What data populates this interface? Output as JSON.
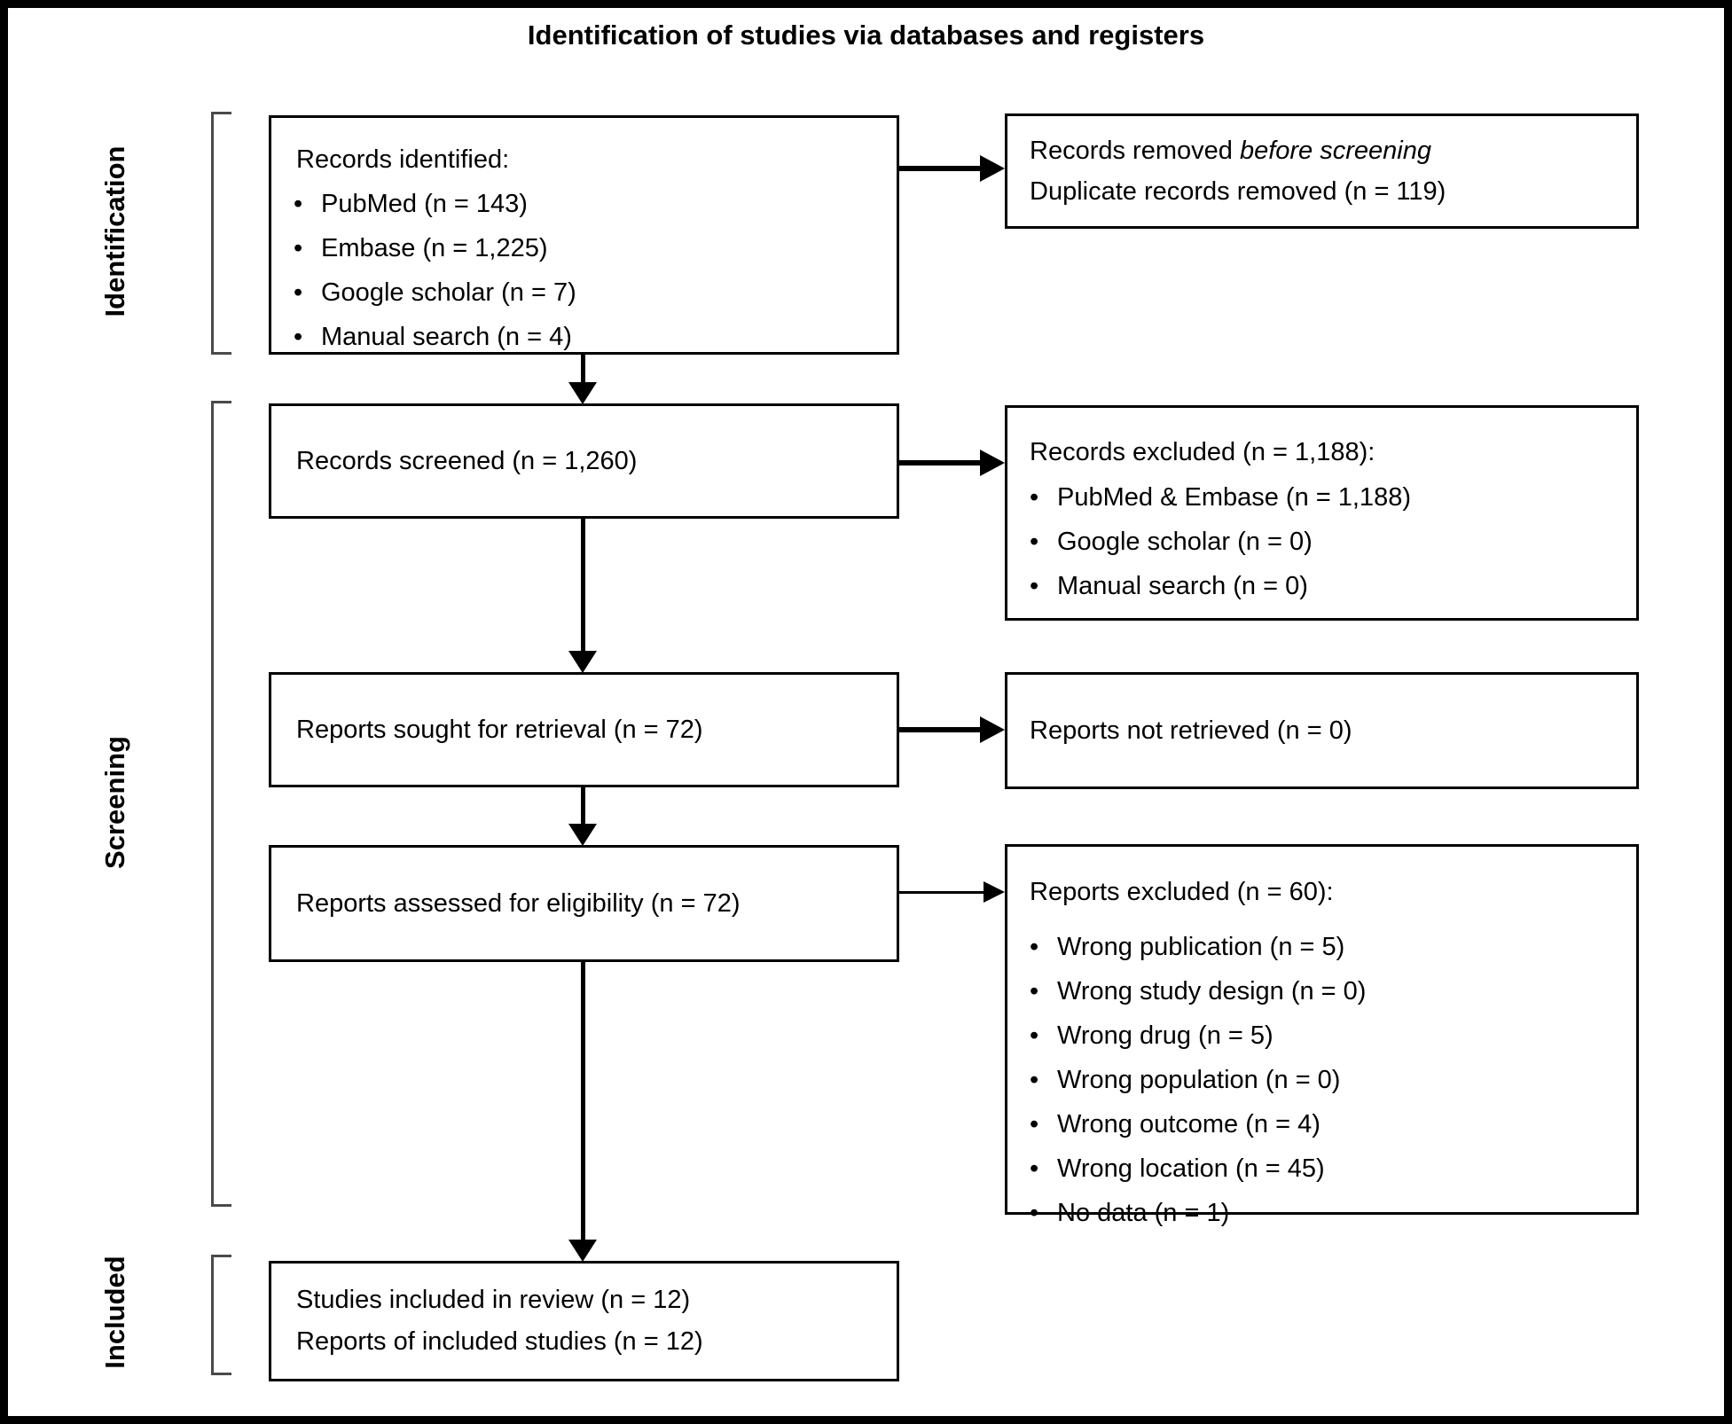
{
  "title": "Identification of studies via databases and registers",
  "stages": {
    "identification": "Identification",
    "screening": "Screening",
    "included": "Included"
  },
  "boxes": {
    "records_identified": {
      "header": "Records identified:",
      "items": [
        "PubMed (n = 143)",
        "Embase (n = 1,225)",
        "Google scholar (n = 7)",
        "Manual search (n = 4)"
      ]
    },
    "records_removed": {
      "line1_prefix": "Records removed ",
      "line1_italic": "before screening",
      "line2": "Duplicate records removed (n = 119)"
    },
    "records_screened": {
      "text": "Records screened (n = 1,260)"
    },
    "records_excluded": {
      "header": "Records excluded (n = 1,188):",
      "items": [
        "PubMed & Embase (n = 1,188)",
        "Google scholar (n = 0)",
        "Manual search (n = 0)"
      ]
    },
    "reports_sought": {
      "text": "Reports sought for retrieval (n = 72)"
    },
    "reports_not_retrieved": {
      "text": "Reports not retrieved (n = 0)"
    },
    "reports_assessed": {
      "text": "Reports assessed for eligibility (n = 72)"
    },
    "reports_excluded": {
      "header": "Reports excluded (n = 60):",
      "items": [
        "Wrong publication (n = 5)",
        "Wrong study design (n = 0)",
        "Wrong drug (n = 5)",
        "Wrong population (n = 0)",
        "Wrong outcome (n = 4)",
        "Wrong location (n = 45)",
        "No data (n = 1)"
      ]
    },
    "studies_included": {
      "line1": "Studies included in review (n = 12)",
      "line2": "Reports of included studies (n = 12)"
    }
  },
  "colors": {
    "line": "#000000",
    "bracket": "#4a4a4a",
    "background": "#ffffff"
  }
}
